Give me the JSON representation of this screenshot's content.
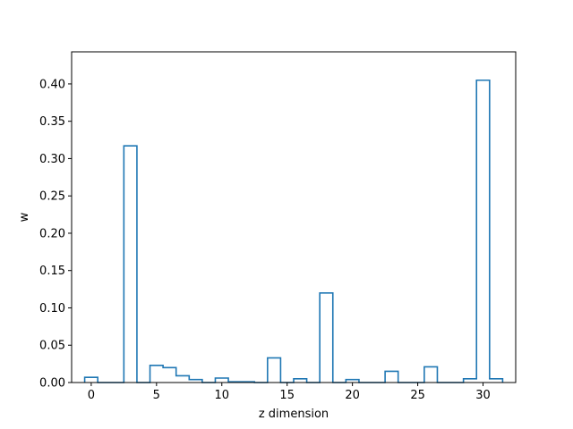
{
  "chart_data": {
    "type": "bar",
    "style": "step-histogram-outline",
    "color": "#1f77b4",
    "title": "",
    "xlabel": "z dimension",
    "ylabel": "w",
    "xlim": [
      -1.5,
      32.5
    ],
    "ylim": [
      0,
      0.443
    ],
    "grid": false,
    "legend": "none",
    "x": [
      0,
      1,
      2,
      3,
      4,
      5,
      6,
      7,
      8,
      9,
      10,
      11,
      12,
      13,
      14,
      15,
      16,
      17,
      18,
      19,
      20,
      21,
      22,
      23,
      24,
      25,
      26,
      27,
      28,
      29,
      30,
      31
    ],
    "values": [
      0.007,
      0.0,
      0.0,
      0.317,
      0.0,
      0.023,
      0.02,
      0.009,
      0.004,
      0.0,
      0.006,
      0.001,
      0.001,
      0.0,
      0.033,
      0.0,
      0.005,
      0.0,
      0.12,
      0.0,
      0.004,
      0.0,
      0.0,
      0.015,
      0.0,
      0.0,
      0.021,
      0.0,
      0.0,
      0.005,
      0.405,
      0.005
    ],
    "xticks": [
      0,
      5,
      10,
      15,
      20,
      25,
      30
    ],
    "xtick_labels": [
      "0",
      "5",
      "10",
      "15",
      "20",
      "25",
      "30"
    ],
    "yticks": [
      0.0,
      0.05,
      0.1,
      0.15,
      0.2,
      0.25,
      0.3,
      0.35,
      0.4
    ],
    "ytick_labels": [
      "0.00",
      "0.05",
      "0.10",
      "0.15",
      "0.20",
      "0.25",
      "0.30",
      "0.35",
      "0.40"
    ]
  }
}
